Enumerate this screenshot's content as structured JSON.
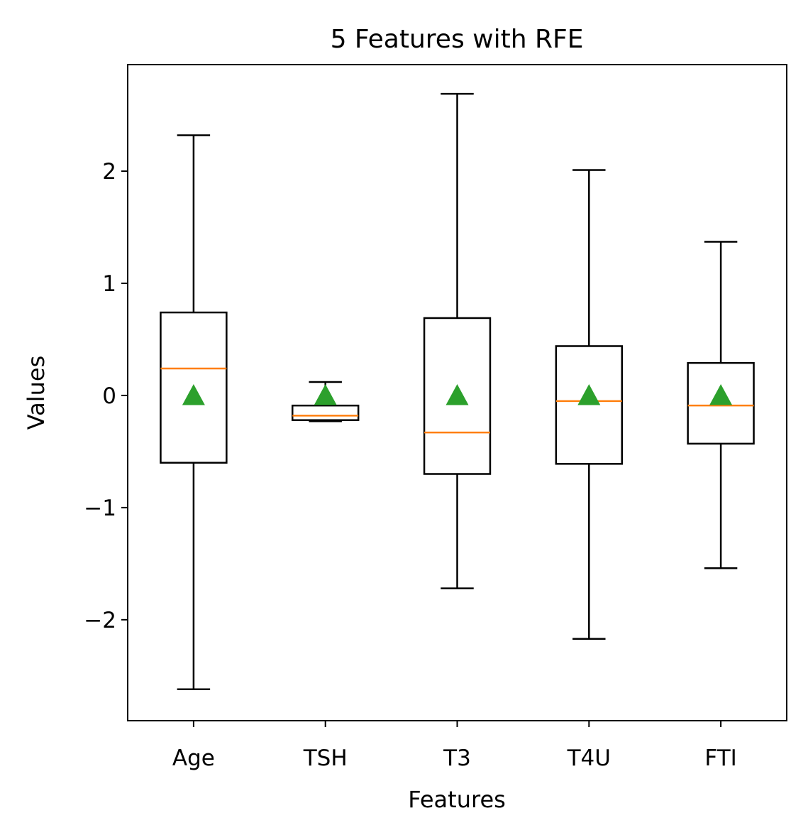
{
  "chart_data": {
    "type": "boxplot",
    "title": "5 Features with RFE",
    "xlabel": "Features",
    "ylabel": "Values",
    "ylim": [
      -2.9,
      2.95
    ],
    "yticks": [
      {
        "value": 2,
        "label": "2"
      },
      {
        "value": 1,
        "label": "1"
      },
      {
        "value": 0,
        "label": "0"
      },
      {
        "value": -1,
        "label": "−1"
      },
      {
        "value": -2,
        "label": "−2"
      }
    ],
    "grid": false,
    "show_means": true,
    "colors": {
      "box": "#000000",
      "median": "#ff7f0e",
      "mean": "#2ca02c"
    },
    "boxes": [
      {
        "category": "Age",
        "whisker_low": -2.62,
        "q1": -0.6,
        "median": 0.24,
        "q3": 0.74,
        "whisker_high": 2.32,
        "mean": 0.0
      },
      {
        "category": "TSH",
        "whisker_low": -0.23,
        "q1": -0.22,
        "median": -0.18,
        "q3": -0.09,
        "whisker_high": 0.12,
        "mean": 0.0
      },
      {
        "category": "T3",
        "whisker_low": -1.72,
        "q1": -0.7,
        "median": -0.33,
        "q3": 0.69,
        "whisker_high": 2.69,
        "mean": 0.0
      },
      {
        "category": "T4U",
        "whisker_low": -2.17,
        "q1": -0.61,
        "median": -0.05,
        "q3": 0.44,
        "whisker_high": 2.01,
        "mean": 0.0
      },
      {
        "category": "FTI",
        "whisker_low": -1.54,
        "q1": -0.43,
        "median": -0.09,
        "q3": 0.29,
        "whisker_high": 1.37,
        "mean": 0.0
      }
    ]
  }
}
